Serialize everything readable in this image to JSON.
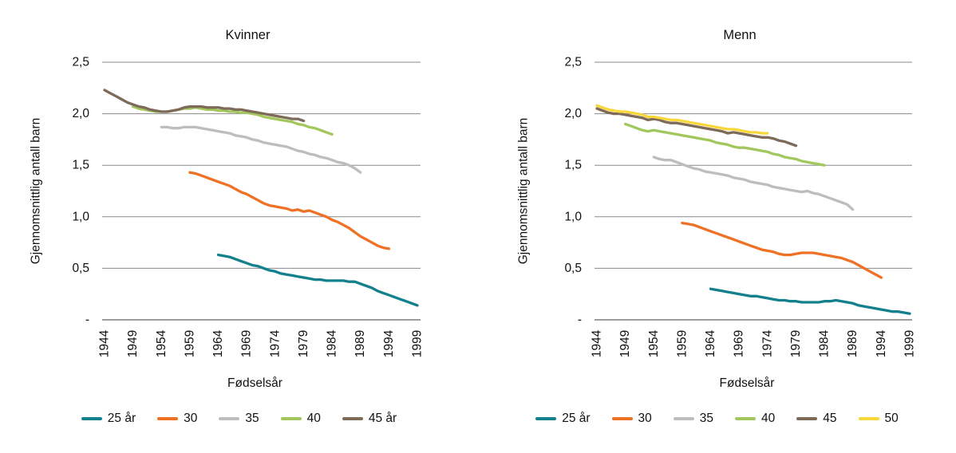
{
  "page": {
    "background": "#ffffff"
  },
  "chart_data": [
    {
      "type": "line",
      "title": "Kvinner",
      "xlabel": "Fødselsår",
      "ylabel": "Gjennomsnittlig antall barn",
      "xlim": [
        1944,
        1999
      ],
      "ylim": [
        0,
        2.5
      ],
      "grid": true,
      "legend_position": "bottom",
      "x_ticks": [
        1944,
        1949,
        1954,
        1959,
        1964,
        1969,
        1974,
        1979,
        1984,
        1989,
        1994,
        1999
      ],
      "y_ticks": [
        0,
        0.5,
        1.0,
        1.5,
        2.0,
        2.5
      ],
      "y_tick_labels": [
        "-",
        "0,5",
        "1,0",
        "1,5",
        "2,0",
        "2,5"
      ],
      "series": [
        {
          "name": "25 år",
          "color": "#13808d",
          "x_start": 1964,
          "values": [
            0.63,
            0.62,
            0.61,
            0.59,
            0.57,
            0.55,
            0.53,
            0.52,
            0.5,
            0.48,
            0.47,
            0.45,
            0.44,
            0.43,
            0.42,
            0.41,
            0.4,
            0.39,
            0.39,
            0.38,
            0.38,
            0.38,
            0.38,
            0.37,
            0.37,
            0.35,
            0.33,
            0.31,
            0.28,
            0.26,
            0.24,
            0.22,
            0.2,
            0.18,
            0.16,
            0.14
          ]
        },
        {
          "name": "30",
          "color": "#ef7125",
          "x_start": 1959,
          "values": [
            1.43,
            1.42,
            1.4,
            1.38,
            1.36,
            1.34,
            1.32,
            1.3,
            1.27,
            1.24,
            1.22,
            1.19,
            1.16,
            1.13,
            1.11,
            1.1,
            1.09,
            1.08,
            1.06,
            1.07,
            1.05,
            1.06,
            1.04,
            1.02,
            1.0,
            0.97,
            0.95,
            0.92,
            0.89,
            0.85,
            0.81,
            0.78,
            0.75,
            0.72,
            0.7,
            0.69
          ]
        },
        {
          "name": "35",
          "color": "#bdbdbd",
          "x_start": 1954,
          "values": [
            1.87,
            1.87,
            1.86,
            1.86,
            1.87,
            1.87,
            1.87,
            1.86,
            1.85,
            1.84,
            1.83,
            1.82,
            1.81,
            1.79,
            1.78,
            1.77,
            1.75,
            1.74,
            1.72,
            1.71,
            1.7,
            1.69,
            1.68,
            1.66,
            1.64,
            1.63,
            1.61,
            1.6,
            1.58,
            1.57,
            1.55,
            1.53,
            1.52,
            1.5,
            1.47,
            1.43
          ]
        },
        {
          "name": "40",
          "color": "#a2c75d",
          "x_start": 1949,
          "values": [
            2.07,
            2.05,
            2.04,
            2.03,
            2.02,
            2.02,
            2.02,
            2.03,
            2.04,
            2.05,
            2.05,
            2.06,
            2.05,
            2.04,
            2.04,
            2.03,
            2.03,
            2.02,
            2.02,
            2.01,
            2.01,
            2.0,
            1.99,
            1.97,
            1.96,
            1.95,
            1.94,
            1.93,
            1.92,
            1.9,
            1.89,
            1.87,
            1.86,
            1.84,
            1.82,
            1.8
          ]
        },
        {
          "name": "45 år",
          "color": "#7d6a58",
          "x_start": 1944,
          "values": [
            2.23,
            2.2,
            2.17,
            2.14,
            2.11,
            2.09,
            2.07,
            2.06,
            2.04,
            2.03,
            2.02,
            2.02,
            2.03,
            2.04,
            2.06,
            2.07,
            2.07,
            2.07,
            2.06,
            2.06,
            2.06,
            2.05,
            2.05,
            2.04,
            2.04,
            2.03,
            2.02,
            2.01,
            2.0,
            1.99,
            1.98,
            1.97,
            1.96,
            1.95,
            1.95,
            1.93
          ]
        }
      ]
    },
    {
      "type": "line",
      "title": "Menn",
      "xlabel": "Fødselsår",
      "ylabel": "Gjennomsnittlig antall barn",
      "xlim": [
        1944,
        1999
      ],
      "ylim": [
        0,
        2.5
      ],
      "grid": true,
      "legend_position": "bottom",
      "x_ticks": [
        1944,
        1949,
        1954,
        1959,
        1964,
        1969,
        1974,
        1979,
        1984,
        1989,
        1994,
        1999
      ],
      "y_ticks": [
        0,
        0.5,
        1.0,
        1.5,
        2.0,
        2.5
      ],
      "y_tick_labels": [
        "-",
        "0,5",
        "1,0",
        "1,5",
        "2,0",
        "2,5"
      ],
      "series": [
        {
          "name": "25 år",
          "color": "#13808d",
          "x_start": 1964,
          "values": [
            0.3,
            0.29,
            0.28,
            0.27,
            0.26,
            0.25,
            0.24,
            0.23,
            0.23,
            0.22,
            0.21,
            0.2,
            0.19,
            0.19,
            0.18,
            0.18,
            0.17,
            0.17,
            0.17,
            0.17,
            0.18,
            0.18,
            0.19,
            0.18,
            0.17,
            0.16,
            0.14,
            0.13,
            0.12,
            0.11,
            0.1,
            0.09,
            0.08,
            0.08,
            0.07,
            0.06
          ]
        },
        {
          "name": "30",
          "color": "#ef7125",
          "x_start": 1959,
          "values": [
            0.94,
            0.93,
            0.92,
            0.9,
            0.88,
            0.86,
            0.84,
            0.82,
            0.8,
            0.78,
            0.76,
            0.74,
            0.72,
            0.7,
            0.68,
            0.67,
            0.66,
            0.64,
            0.63,
            0.63,
            0.64,
            0.65,
            0.65,
            0.65,
            0.64,
            0.63,
            0.62,
            0.61,
            0.6,
            0.58,
            0.56,
            0.53,
            0.5,
            0.47,
            0.44,
            0.41
          ]
        },
        {
          "name": "35",
          "color": "#bdbdbd",
          "x_start": 1954,
          "values": [
            1.58,
            1.56,
            1.55,
            1.55,
            1.53,
            1.51,
            1.49,
            1.47,
            1.46,
            1.44,
            1.43,
            1.42,
            1.41,
            1.4,
            1.38,
            1.37,
            1.36,
            1.34,
            1.33,
            1.32,
            1.31,
            1.29,
            1.28,
            1.27,
            1.26,
            1.25,
            1.24,
            1.25,
            1.23,
            1.22,
            1.2,
            1.18,
            1.16,
            1.14,
            1.12,
            1.07
          ]
        },
        {
          "name": "40",
          "color": "#a2c75d",
          "x_start": 1949,
          "values": [
            1.9,
            1.88,
            1.86,
            1.84,
            1.83,
            1.84,
            1.83,
            1.82,
            1.81,
            1.8,
            1.79,
            1.78,
            1.77,
            1.76,
            1.75,
            1.74,
            1.72,
            1.71,
            1.7,
            1.68,
            1.67,
            1.67,
            1.66,
            1.65,
            1.64,
            1.63,
            1.61,
            1.6,
            1.58,
            1.57,
            1.56,
            1.54,
            1.53,
            1.52,
            1.51,
            1.5
          ]
        },
        {
          "name": "45",
          "color": "#7d6a58",
          "x_start": 1944,
          "values": [
            2.05,
            2.03,
            2.01,
            2.0,
            2.0,
            1.99,
            1.98,
            1.97,
            1.96,
            1.94,
            1.95,
            1.94,
            1.92,
            1.91,
            1.91,
            1.9,
            1.89,
            1.88,
            1.87,
            1.86,
            1.85,
            1.84,
            1.83,
            1.81,
            1.82,
            1.81,
            1.8,
            1.79,
            1.78,
            1.77,
            1.77,
            1.76,
            1.74,
            1.73,
            1.71,
            1.69
          ]
        },
        {
          "name": "50",
          "color": "#f8d73a",
          "x_start": 1944,
          "values": [
            2.08,
            2.06,
            2.04,
            2.03,
            2.02,
            2.02,
            2.01,
            2.0,
            1.99,
            1.97,
            1.97,
            1.96,
            1.95,
            1.94,
            1.94,
            1.93,
            1.92,
            1.91,
            1.9,
            1.89,
            1.88,
            1.87,
            1.86,
            1.85,
            1.85,
            1.84,
            1.83,
            1.82,
            1.82,
            1.81,
            1.81
          ]
        }
      ]
    }
  ]
}
